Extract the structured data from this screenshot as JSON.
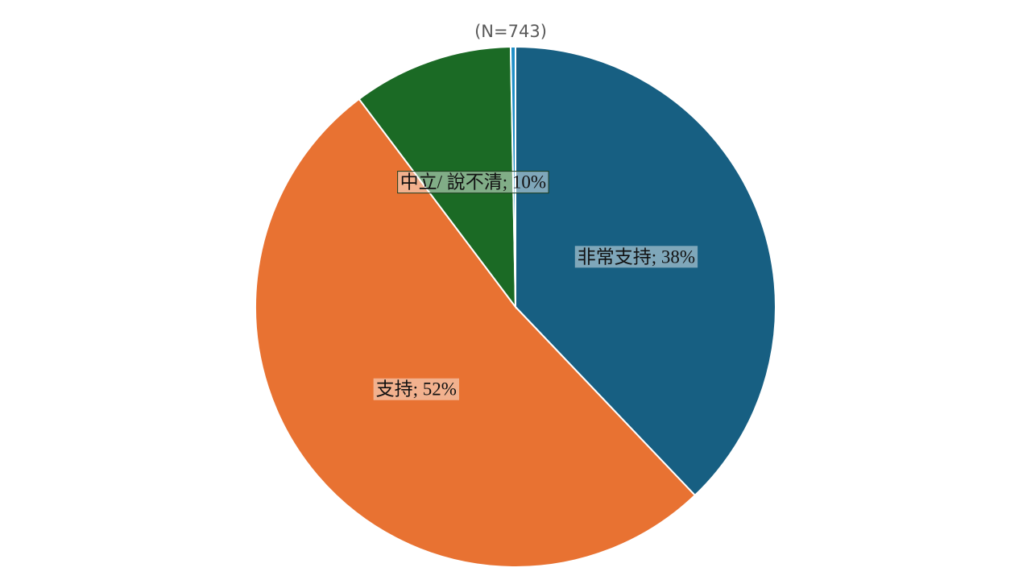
{
  "chart_data": {
    "type": "pie",
    "subtitle": "(N=743)",
    "values": [
      38,
      52,
      10,
      0.3
    ],
    "value_labels": [
      "非常支持; 38%",
      "支持; 52%",
      "中立/ 說不清; 10%",
      null
    ],
    "colors": [
      "#175f82",
      "#e87232",
      "#1b6a25",
      "#1f8fc7"
    ]
  }
}
